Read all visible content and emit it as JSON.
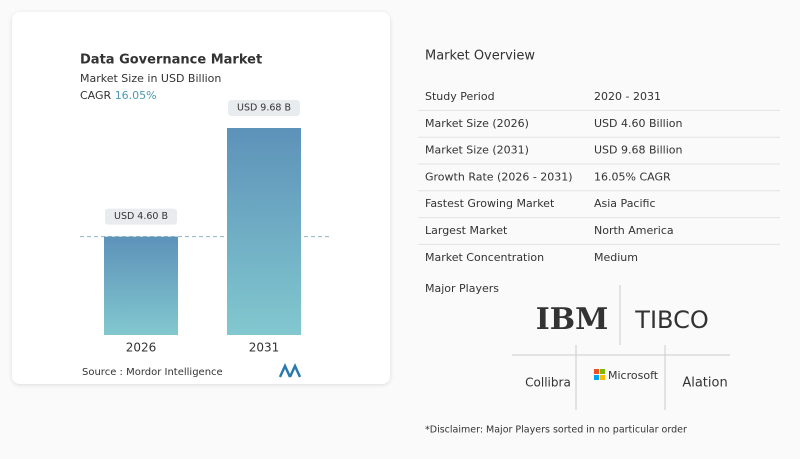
{
  "chart_data": {
    "type": "bar",
    "title": "Data Governance Market",
    "subtitle": "Market Size in USD Billion",
    "cagr_label": "CAGR",
    "cagr": "16.05%",
    "categories": [
      "2026",
      "2031"
    ],
    "values": [
      4.6,
      9.68
    ],
    "value_labels": [
      "USD 4.60 B",
      "USD 9.68 B"
    ],
    "source": "Source :  Mordor Intelligence"
  },
  "overview": {
    "title": "Market Overview",
    "rows": [
      [
        "Study Period",
        "2020 - 2031"
      ],
      [
        "Market Size (2026)",
        "USD 4.60 Billion"
      ],
      [
        "Market Size (2031)",
        "USD 9.68 Billion"
      ],
      [
        "Growth Rate (2026 - 2031)",
        "16.05% CAGR"
      ],
      [
        "Fastest Growing Market",
        "Asia Pacific"
      ],
      [
        "Largest Market",
        "North America"
      ],
      [
        "Market Concentration",
        "Medium"
      ]
    ]
  },
  "players": {
    "title": "Major Players",
    "names": [
      "IBM",
      "TIBCO",
      "Collibra",
      "Microsoft",
      "Alation"
    ],
    "disclaimer": "*Disclaimer: Major Players sorted in no particular order"
  }
}
